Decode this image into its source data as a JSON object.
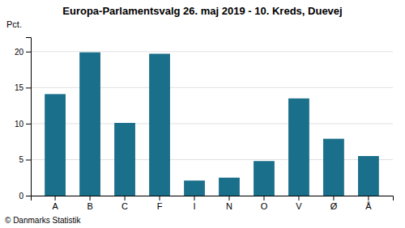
{
  "chart_data": {
    "type": "bar",
    "title": "Europa-Parlamentsvalg 26. maj 2019 - 10. Kreds, Duevej",
    "ylabel": "Pct.",
    "footer": "© Danmarks Statistik",
    "categories": [
      "A",
      "B",
      "C",
      "F",
      "I",
      "N",
      "O",
      "V",
      "Ø",
      "Å"
    ],
    "values": [
      14.1,
      19.9,
      10.1,
      19.7,
      2.1,
      2.5,
      4.8,
      13.5,
      7.9,
      5.5
    ],
    "color": "#1a6f8a",
    "ylim": [
      0,
      22
    ],
    "yticks": [
      0,
      5,
      10,
      15,
      20
    ],
    "grid": true
  }
}
